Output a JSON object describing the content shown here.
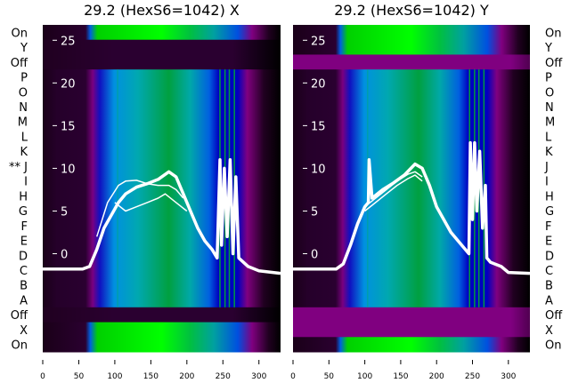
{
  "chart_data": [
    {
      "type": "heatmap",
      "title": "29.2 (HexS6=1042) X",
      "row_labels": [
        "On",
        "Y",
        "Off",
        "P",
        "O",
        "N",
        "M",
        "L",
        "K",
        "** J",
        "I",
        "H",
        "G",
        "F",
        "E",
        "D",
        "C",
        "B",
        "A",
        "Off",
        "X",
        "On"
      ],
      "row_bands": [
        "on",
        "off",
        "off",
        "main",
        "main",
        "main",
        "main",
        "main",
        "main",
        "main",
        "main",
        "main",
        "main",
        "main",
        "main",
        "main",
        "main",
        "main",
        "main",
        "off",
        "on",
        "on"
      ],
      "xlim": [
        0,
        330
      ],
      "x_ticks": [
        "0",
        "50",
        "100",
        "150",
        "200",
        "250",
        "300"
      ],
      "ylim_overlay": [
        -11.5,
        26.8
      ],
      "y_ticks": [
        "0",
        "5",
        "10",
        "15",
        "20",
        "25"
      ],
      "overlay_series": [
        {
          "name": "thick",
          "x": [
            0,
            55,
            65,
            75,
            85,
            95,
            105,
            115,
            130,
            145,
            160,
            175,
            185,
            195,
            205,
            215,
            225,
            235,
            242,
            246,
            248,
            252,
            256,
            260,
            264,
            268,
            272,
            285,
            300,
            330
          ],
          "y": [
            -1.8,
            -1.8,
            -1.5,
            0.5,
            3,
            4.5,
            6,
            7,
            7.8,
            8.2,
            8.7,
            9.6,
            9,
            7,
            5,
            3,
            1.5,
            0.5,
            -0.5,
            11,
            1,
            10,
            2,
            11,
            0,
            9,
            -0.5,
            -1.5,
            -2,
            -2.3
          ]
        },
        {
          "name": "thin",
          "x": [
            75,
            90,
            105,
            115,
            130,
            145,
            160,
            175,
            185,
            195
          ],
          "y": [
            2,
            6,
            8,
            8.5,
            8.6,
            8.2,
            8,
            8,
            7.5,
            6.5
          ]
        },
        {
          "name": "thin2",
          "x": [
            100,
            115,
            130,
            145,
            160,
            170,
            185,
            200
          ],
          "y": [
            6,
            5,
            5.5,
            6,
            6.5,
            7,
            6,
            5
          ]
        }
      ]
    },
    {
      "type": "heatmap",
      "title": "29.2 (HexS6=1042) Y",
      "row_labels": [
        "On",
        "Y",
        "Off",
        "P",
        "O",
        "N",
        "M",
        "L",
        "K",
        "J",
        "I",
        "H",
        "G",
        "F",
        "E",
        "D",
        "C",
        "B",
        "A",
        "Off",
        "X",
        "On"
      ],
      "row_bands": [
        "on",
        "on",
        "purple",
        "main",
        "main",
        "main",
        "main",
        "main",
        "main",
        "main",
        "main",
        "main",
        "main",
        "main",
        "main",
        "main",
        "main",
        "main",
        "main",
        "purple",
        "purple",
        "on"
      ],
      "xlim": [
        0,
        330
      ],
      "x_ticks": [
        "0",
        "50",
        "100",
        "150",
        "200",
        "250",
        "300"
      ],
      "ylim_overlay": [
        -11.5,
        26.8
      ],
      "y_ticks": [
        "0",
        "5",
        "10",
        "15",
        "20",
        "25"
      ],
      "overlay_series": [
        {
          "name": "thick",
          "x": [
            0,
            60,
            70,
            80,
            90,
            100,
            105,
            106,
            110,
            125,
            140,
            155,
            170,
            180,
            190,
            200,
            210,
            220,
            230,
            245,
            247,
            250,
            253,
            256,
            260,
            264,
            268,
            270,
            275,
            290,
            300,
            330
          ],
          "y": [
            -1.8,
            -1.8,
            -1.2,
            1,
            3.5,
            5.5,
            6,
            11,
            6.5,
            7.5,
            8.3,
            9.2,
            10.5,
            10,
            8,
            5.5,
            4,
            2.5,
            1.5,
            0,
            13,
            4,
            13,
            5,
            12,
            3,
            8,
            -0.5,
            -1,
            -1.5,
            -2.2,
            -2.3
          ]
        },
        {
          "name": "thin",
          "x": [
            100,
            115,
            130,
            145,
            160,
            170,
            180
          ],
          "y": [
            5.5,
            6.5,
            7.5,
            8.5,
            9.3,
            9.6,
            9
          ]
        },
        {
          "name": "thin2",
          "x": [
            100,
            115,
            130,
            145,
            160,
            170,
            180
          ],
          "y": [
            5,
            6,
            7,
            8,
            8.8,
            9.2,
            8.5
          ]
        }
      ]
    }
  ],
  "colors": {
    "on": "#00e000",
    "purple": "#800080",
    "dark": "#20001f",
    "line": "#ffffff"
  }
}
